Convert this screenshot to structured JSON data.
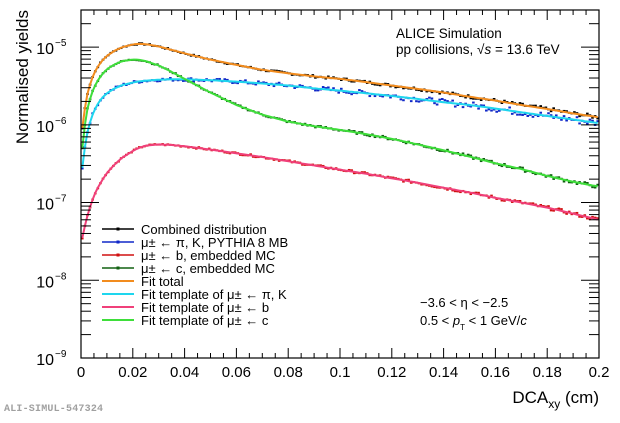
{
  "chart_data": {
    "type": "line",
    "title": "",
    "xlabel": "DCA",
    "xlabel_sub": "xy",
    "xlabel_unit": " (cm)",
    "ylabel": "Normalised yields",
    "xlim": [
      0,
      0.2
    ],
    "ylim": [
      1e-09,
      3e-05
    ],
    "yscale": "log",
    "grid": false,
    "x_ticks": [
      "0",
      "0.02",
      "0.04",
      "0.06",
      "0.08",
      "0.1",
      "0.12",
      "0.14",
      "0.16",
      "0.18",
      "0.2"
    ],
    "x_tick_values": [
      0,
      0.02,
      0.04,
      0.06,
      0.08,
      0.1,
      0.12,
      0.14,
      0.16,
      0.18,
      0.2
    ],
    "y_ticks": [
      {
        "value": 1e-09,
        "base": "10",
        "exp": "−9"
      },
      {
        "value": 1e-08,
        "base": "10",
        "exp": "−8"
      },
      {
        "value": 1e-07,
        "base": "10",
        "exp": "−7"
      },
      {
        "value": 1e-06,
        "base": "10",
        "exp": "−6"
      },
      {
        "value": 1e-05,
        "base": "10",
        "exp": "−5"
      }
    ],
    "annotations": {
      "experiment": "ALICE Simulation",
      "system_prefix": "pp collisions, ",
      "sqrt_symbol": "√",
      "system_var": "s",
      "system_suffix": " = 13.6 TeV",
      "eta_range": "−3.6 < η < −2.5",
      "pt_prefix": "0.5 < ",
      "pt_var": "p",
      "pt_sub": "T",
      "pt_suffix": " < 1 GeV/",
      "pt_c": "c"
    },
    "legend_position": "bottom-left",
    "x": [
      0.0005,
      0.002,
      0.004,
      0.006,
      0.008,
      0.01,
      0.013,
      0.016,
      0.02,
      0.022,
      0.025,
      0.03,
      0.035,
      0.04,
      0.05,
      0.06,
      0.07,
      0.08,
      0.09,
      0.1,
      0.11,
      0.12,
      0.13,
      0.14,
      0.15,
      0.16,
      0.17,
      0.18,
      0.19,
      0.2
    ],
    "series": [
      {
        "name": "Fit total",
        "kind": "fit",
        "color": "#f28c1e",
        "values": [
          9e-07,
          2.2e-06,
          3.8e-06,
          5.3e-06,
          6.6e-06,
          7.7e-06,
          9e-06,
          1e-05,
          1.08e-05,
          1.1e-05,
          1.09e-05,
          1.02e-05,
          9.2e-06,
          8.3e-06,
          6.9e-06,
          5.9e-06,
          5.1e-06,
          4.6e-06,
          4.2e-06,
          3.9e-06,
          3.55e-06,
          3.2e-06,
          2.9e-06,
          2.6e-06,
          2.3e-06,
          2.05e-06,
          1.8e-06,
          1.6e-06,
          1.4e-06,
          1.25e-06
        ]
      },
      {
        "name": "Fit template of μ± ← π, K",
        "kind": "fit",
        "color": "#1ed6ee",
        "values": [
          2.8e-07,
          7e-07,
          1.25e-06,
          1.75e-06,
          2.2e-06,
          2.55e-06,
          2.95e-06,
          3.25e-06,
          3.5e-06,
          3.6e-06,
          3.7e-06,
          3.8e-06,
          3.85e-06,
          3.85e-06,
          3.75e-06,
          3.6e-06,
          3.4e-06,
          3.2e-06,
          2.95e-06,
          2.75e-06,
          2.55e-06,
          2.35e-06,
          2.15e-06,
          1.95e-06,
          1.8e-06,
          1.62e-06,
          1.45e-06,
          1.3e-06,
          1.17e-06,
          1.05e-06
        ]
      },
      {
        "name": "Fit template of μ± ← b",
        "kind": "fit",
        "color": "#f0407a",
        "values": [
          3.5e-08,
          6e-08,
          1e-07,
          1.45e-07,
          1.9e-07,
          2.4e-07,
          3.1e-07,
          3.8e-07,
          4.6e-07,
          5e-07,
          5.4e-07,
          5.6e-07,
          5.5e-07,
          5.3e-07,
          4.8e-07,
          4.3e-07,
          3.85e-07,
          3.4e-07,
          3e-07,
          2.65e-07,
          2.35e-07,
          2.05e-07,
          1.8e-07,
          1.55e-07,
          1.35e-07,
          1.15e-07,
          1e-07,
          8.6e-08,
          7.2e-08,
          6e-08
        ]
      },
      {
        "name": "Fit template of μ± ← c",
        "kind": "fit",
        "color": "#3ede3a",
        "values": [
          5e-07,
          1.4e-06,
          2.5e-06,
          3.5e-06,
          4.4e-06,
          5.2e-06,
          6e-06,
          6.6e-06,
          6.9e-06,
          6.9e-06,
          6.6e-06,
          5.8e-06,
          4.8e-06,
          3.9e-06,
          2.6e-06,
          1.8e-06,
          1.35e-06,
          1.1e-06,
          9.6e-07,
          8.6e-07,
          7.6e-07,
          6.6e-07,
          5.6e-07,
          4.7e-07,
          3.9e-07,
          3.2e-07,
          2.7e-07,
          2.2e-07,
          1.85e-07,
          1.6e-07
        ]
      },
      {
        "name": "Combined distribution",
        "kind": "points",
        "color": "#000000",
        "follows": "Fit total"
      },
      {
        "name": "μ± ← π, K, PYTHIA 8 MB",
        "kind": "points",
        "color": "#1028c8",
        "follows": "Fit template of μ± ← π, K"
      },
      {
        "name": "μ± ← b, embedded MC",
        "kind": "points",
        "color": "#d01010",
        "follows": "Fit template of μ± ← b"
      },
      {
        "name": "μ± ← c, embedded MC",
        "kind": "points",
        "color": "#106010",
        "follows": "Fit template of μ± ← c"
      }
    ],
    "legend": [
      {
        "label": "Combined distribution",
        "color": "#000000",
        "marker": true
      },
      {
        "label": "μ± ← π, K, PYTHIA 8 MB",
        "color": "#1028c8",
        "marker": true
      },
      {
        "label": "μ± ← b, embedded MC",
        "color": "#d01010",
        "marker": true
      },
      {
        "label": "μ± ← c, embedded MC",
        "color": "#106010",
        "marker": true
      },
      {
        "label": "Fit total",
        "color": "#f28c1e",
        "marker": false
      },
      {
        "label": "Fit template of μ± ← π, K",
        "color": "#1ed6ee",
        "marker": false
      },
      {
        "label": "Fit template of μ± ← b",
        "color": "#f0407a",
        "marker": false
      },
      {
        "label": "Fit template of μ± ← c",
        "color": "#3ede3a",
        "marker": false
      }
    ]
  },
  "watermark": "ALI-SIMUL-547324"
}
